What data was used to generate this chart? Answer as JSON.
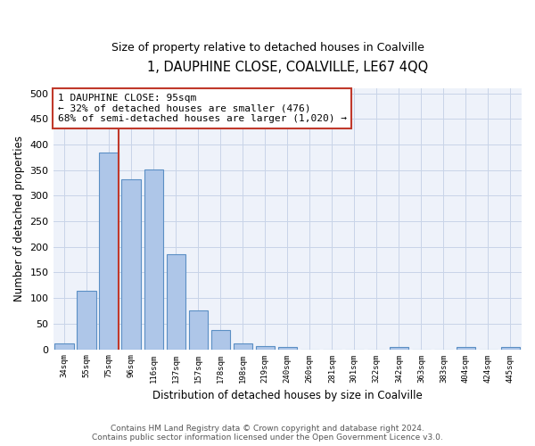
{
  "title": "1, DAUPHINE CLOSE, COALVILLE, LE67 4QQ",
  "subtitle": "Size of property relative to detached houses in Coalville",
  "xlabel": "Distribution of detached houses by size in Coalville",
  "ylabel": "Number of detached properties",
  "bar_categories": [
    "34sqm",
    "55sqm",
    "75sqm",
    "96sqm",
    "116sqm",
    "137sqm",
    "157sqm",
    "178sqm",
    "198sqm",
    "219sqm",
    "240sqm",
    "260sqm",
    "281sqm",
    "301sqm",
    "322sqm",
    "342sqm",
    "363sqm",
    "383sqm",
    "404sqm",
    "424sqm",
    "445sqm"
  ],
  "bar_heights": [
    11,
    115,
    385,
    332,
    352,
    185,
    76,
    38,
    11,
    7,
    4,
    0,
    0,
    0,
    0,
    5,
    0,
    0,
    5,
    0,
    5
  ],
  "bar_color": "#aec6e8",
  "bar_edge_color": "#5b8fc4",
  "vline_color": "#c0392b",
  "annotation_text": "1 DAUPHINE CLOSE: 95sqm\n← 32% of detached houses are smaller (476)\n68% of semi-detached houses are larger (1,020) →",
  "annotation_box_color": "#c0392b",
  "ylim": [
    0,
    510
  ],
  "yticks": [
    0,
    50,
    100,
    150,
    200,
    250,
    300,
    350,
    400,
    450,
    500
  ],
  "grid_color": "#c8d4e8",
  "footer_text": "Contains HM Land Registry data © Crown copyright and database right 2024.\nContains public sector information licensed under the Open Government Licence v3.0.",
  "bg_color": "#e8eef8",
  "plot_bg_color": "#eef2fa"
}
